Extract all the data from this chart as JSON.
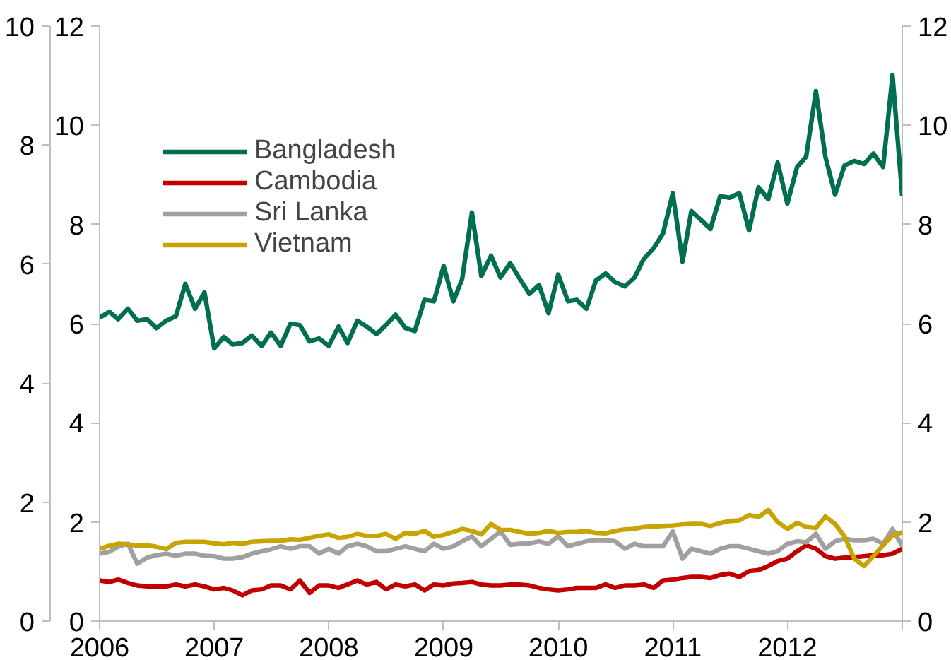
{
  "chart_data": {
    "type": "line",
    "x": [
      "2006-01",
      "2006-02",
      "2006-03",
      "2006-04",
      "2006-05",
      "2006-06",
      "2006-07",
      "2006-08",
      "2006-09",
      "2006-10",
      "2006-11",
      "2006-12",
      "2007-01",
      "2007-02",
      "2007-03",
      "2007-04",
      "2007-05",
      "2007-06",
      "2007-07",
      "2007-08",
      "2007-09",
      "2007-10",
      "2007-11",
      "2007-12",
      "2008-01",
      "2008-02",
      "2008-03",
      "2008-04",
      "2008-05",
      "2008-06",
      "2008-07",
      "2008-08",
      "2008-09",
      "2008-10",
      "2008-11",
      "2008-12",
      "2009-01",
      "2009-02",
      "2009-03",
      "2009-04",
      "2009-05",
      "2009-06",
      "2009-07",
      "2009-08",
      "2009-09",
      "2009-10",
      "2009-11",
      "2009-12",
      "2010-01",
      "2010-02",
      "2010-03",
      "2010-04",
      "2010-05",
      "2010-06",
      "2010-07",
      "2010-08",
      "2010-09",
      "2010-10",
      "2010-11",
      "2010-12",
      "2011-01",
      "2011-02",
      "2011-03",
      "2011-04",
      "2011-05",
      "2011-06",
      "2011-07",
      "2011-08",
      "2011-09",
      "2011-10",
      "2011-11",
      "2011-12",
      "2012-01",
      "2012-02",
      "2012-03",
      "2012-04",
      "2012-05",
      "2012-06",
      "2012-07",
      "2012-08",
      "2012-09",
      "2012-10",
      "2012-11",
      "2012-12",
      "2013-01"
    ],
    "series": [
      {
        "name": "Bangladesh",
        "color": "#006e51",
        "values": [
          6.12,
          6.24,
          6.09,
          6.3,
          6.06,
          6.09,
          5.91,
          6.06,
          6.15,
          6.8,
          6.3,
          6.63,
          5.5,
          5.73,
          5.58,
          5.61,
          5.76,
          5.55,
          5.82,
          5.55,
          6.0,
          5.97,
          5.64,
          5.7,
          5.55,
          5.94,
          5.61,
          6.06,
          5.94,
          5.79,
          5.97,
          6.18,
          5.91,
          5.85,
          6.48,
          6.45,
          7.16,
          6.45,
          6.9,
          8.24,
          6.96,
          7.37,
          6.93,
          7.22,
          6.9,
          6.6,
          6.78,
          6.21,
          6.99,
          6.45,
          6.48,
          6.3,
          6.87,
          7.01,
          6.84,
          6.75,
          6.93,
          7.31,
          7.52,
          7.82,
          8.63,
          7.25,
          8.27,
          8.09,
          7.91,
          8.57,
          8.54,
          8.63,
          7.88,
          8.75,
          8.51,
          9.25,
          8.42,
          9.16,
          9.37,
          10.69,
          9.37,
          8.6,
          9.19,
          9.28,
          9.22,
          9.43,
          9.16,
          11.01,
          8.57
        ]
      },
      {
        "name": "Cambodia",
        "color": "#c00000",
        "values": [
          0.82,
          0.79,
          0.84,
          0.77,
          0.72,
          0.7,
          0.7,
          0.7,
          0.74,
          0.7,
          0.74,
          0.7,
          0.64,
          0.67,
          0.62,
          0.52,
          0.62,
          0.64,
          0.72,
          0.72,
          0.64,
          0.82,
          0.57,
          0.72,
          0.72,
          0.67,
          0.74,
          0.82,
          0.74,
          0.79,
          0.64,
          0.74,
          0.7,
          0.74,
          0.62,
          0.74,
          0.72,
          0.76,
          0.77,
          0.79,
          0.74,
          0.72,
          0.72,
          0.74,
          0.74,
          0.72,
          0.67,
          0.64,
          0.62,
          0.64,
          0.67,
          0.67,
          0.67,
          0.74,
          0.67,
          0.72,
          0.72,
          0.74,
          0.67,
          0.82,
          0.84,
          0.87,
          0.89,
          0.89,
          0.87,
          0.93,
          0.96,
          0.89,
          1.01,
          1.03,
          1.11,
          1.21,
          1.26,
          1.41,
          1.53,
          1.46,
          1.31,
          1.26,
          1.28,
          1.29,
          1.31,
          1.33,
          1.33,
          1.36,
          1.46
        ]
      },
      {
        "name": "Sri Lanka",
        "color": "#a0a0a0",
        "values": [
          1.36,
          1.4,
          1.5,
          1.56,
          1.16,
          1.28,
          1.33,
          1.36,
          1.32,
          1.36,
          1.36,
          1.32,
          1.31,
          1.26,
          1.26,
          1.29,
          1.36,
          1.41,
          1.45,
          1.51,
          1.46,
          1.51,
          1.51,
          1.36,
          1.46,
          1.36,
          1.51,
          1.56,
          1.51,
          1.41,
          1.41,
          1.46,
          1.51,
          1.46,
          1.41,
          1.56,
          1.46,
          1.51,
          1.61,
          1.71,
          1.51,
          1.66,
          1.81,
          1.54,
          1.56,
          1.57,
          1.61,
          1.56,
          1.71,
          1.51,
          1.56,
          1.61,
          1.63,
          1.63,
          1.61,
          1.46,
          1.56,
          1.51,
          1.51,
          1.51,
          1.81,
          1.26,
          1.46,
          1.41,
          1.36,
          1.46,
          1.51,
          1.51,
          1.46,
          1.41,
          1.36,
          1.41,
          1.56,
          1.61,
          1.59,
          1.76,
          1.46,
          1.61,
          1.66,
          1.63,
          1.63,
          1.66,
          1.56,
          1.86,
          1.51
        ]
      },
      {
        "name": "Vietnam",
        "color": "#c8a400",
        "values": [
          1.46,
          1.52,
          1.56,
          1.55,
          1.52,
          1.53,
          1.5,
          1.45,
          1.58,
          1.6,
          1.6,
          1.6,
          1.57,
          1.55,
          1.58,
          1.56,
          1.6,
          1.61,
          1.62,
          1.62,
          1.65,
          1.64,
          1.68,
          1.72,
          1.75,
          1.68,
          1.7,
          1.76,
          1.72,
          1.72,
          1.76,
          1.66,
          1.78,
          1.76,
          1.82,
          1.7,
          1.74,
          1.8,
          1.86,
          1.82,
          1.75,
          1.96,
          1.84,
          1.84,
          1.8,
          1.76,
          1.78,
          1.82,
          1.78,
          1.8,
          1.8,
          1.82,
          1.78,
          1.77,
          1.82,
          1.85,
          1.86,
          1.9,
          1.91,
          1.92,
          1.93,
          1.95,
          1.96,
          1.96,
          1.92,
          1.98,
          2.02,
          2.03,
          2.14,
          2.1,
          2.24,
          2.0,
          1.86,
          1.98,
          1.9,
          1.88,
          2.11,
          1.96,
          1.71,
          1.26,
          1.11,
          1.31,
          1.53,
          1.73,
          1.79
        ]
      }
    ],
    "xlim": [
      "2006-01",
      "2013-01"
    ],
    "xticks": [
      {
        "value": "2006-01",
        "label": "2006"
      },
      {
        "value": "2007-01",
        "label": "2007"
      },
      {
        "value": "2008-01",
        "label": "2008"
      },
      {
        "value": "2009-01",
        "label": "2009"
      },
      {
        "value": "2010-01",
        "label": "2010"
      },
      {
        "value": "2011-01",
        "label": "2011"
      },
      {
        "value": "2012-01",
        "label": "2012"
      },
      {
        "value": "2013-01",
        "label": null
      }
    ],
    "ylim": [
      0,
      12
    ],
    "yticks": [
      0,
      2,
      4,
      6,
      8,
      10,
      12
    ],
    "y2lim": [
      0,
      12
    ],
    "y2ticks": [
      0,
      2,
      4,
      6,
      8,
      10,
      12
    ],
    "y3lim": [
      0,
      10
    ],
    "y3ticks": [
      0,
      2,
      4,
      6,
      8,
      10
    ],
    "grid": false,
    "legend": "top left",
    "line_style": "solid",
    "marker": "none"
  }
}
